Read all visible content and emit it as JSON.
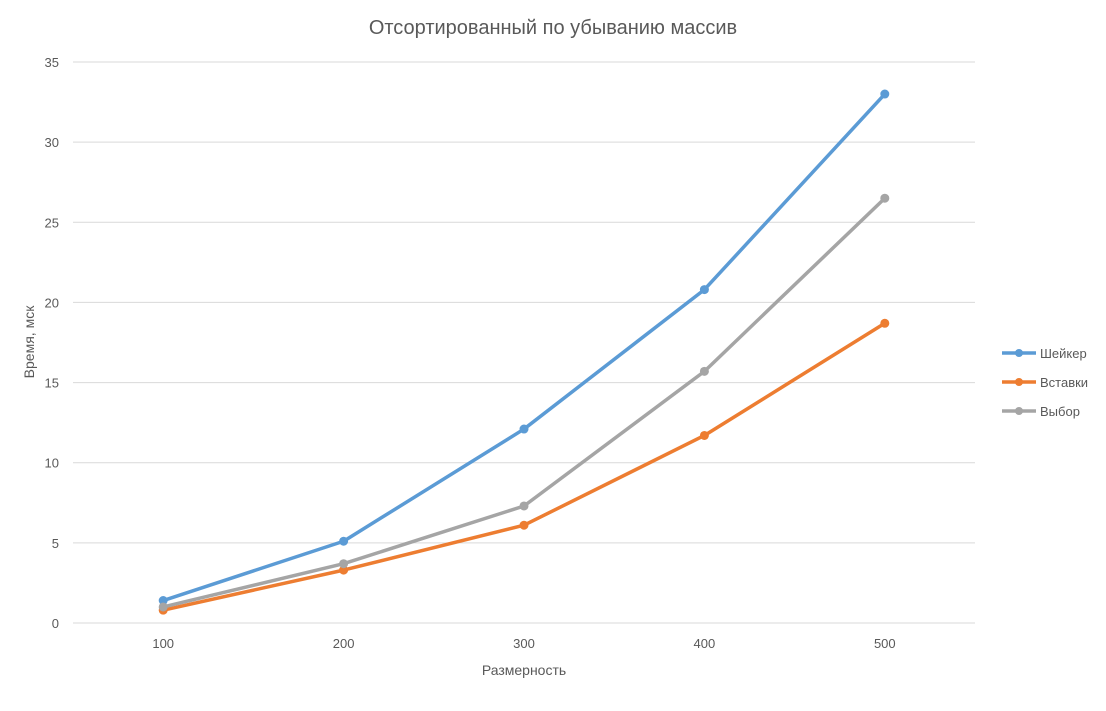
{
  "chart_data": {
    "type": "line",
    "title": "Отсортированный по убыванию массив",
    "xlabel": "Размерность",
    "ylabel": "Время, мск",
    "categories": [
      "100",
      "200",
      "300",
      "400",
      "500"
    ],
    "y_ticks": [
      "0",
      "5",
      "10",
      "15",
      "20",
      "25",
      "30",
      "35"
    ],
    "ylim": [
      0,
      35
    ],
    "grid": true,
    "legend_position": "right",
    "series": [
      {
        "name": "Шейкер",
        "color": "#5b9bd5",
        "values": [
          1.4,
          5.1,
          12.1,
          20.8,
          33.0
        ]
      },
      {
        "name": "Вставки",
        "color": "#ed7d31",
        "values": [
          0.8,
          3.3,
          6.1,
          11.7,
          18.7
        ]
      },
      {
        "name": "Выбор",
        "color": "#a5a5a5",
        "values": [
          1.0,
          3.7,
          7.3,
          15.7,
          26.5
        ]
      }
    ]
  }
}
